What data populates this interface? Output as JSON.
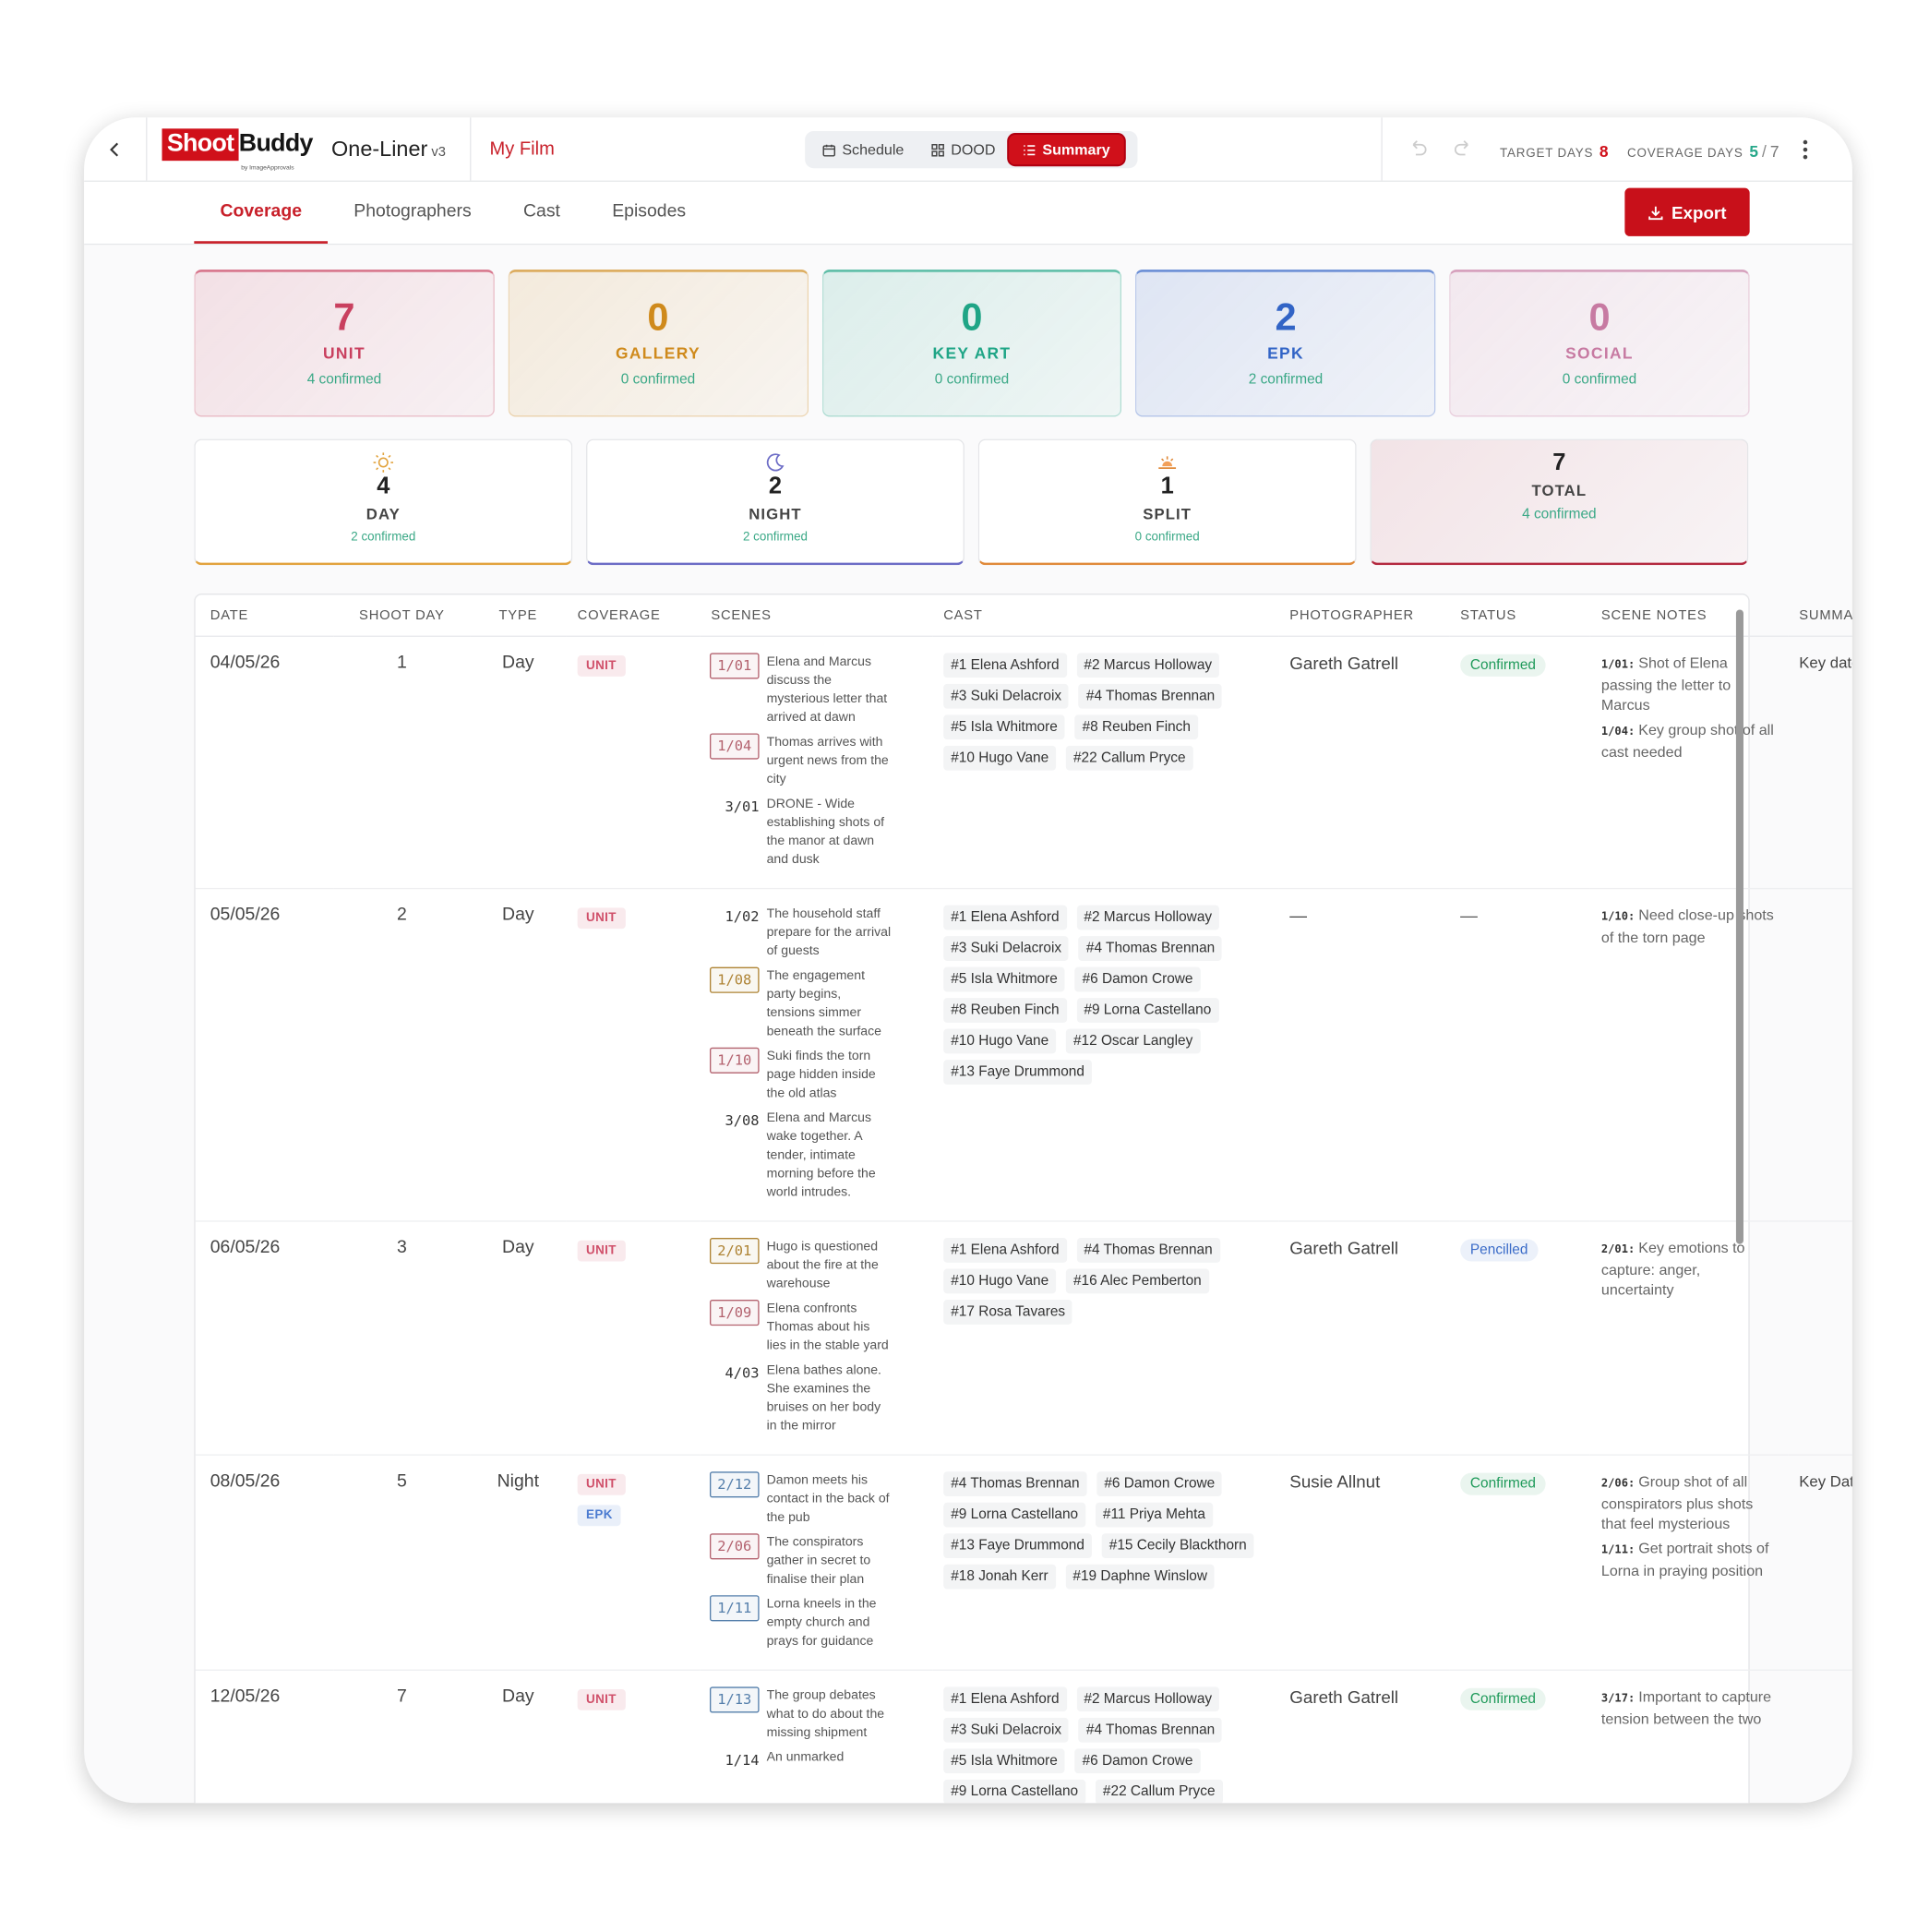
{
  "header": {
    "logo": {
      "shoot": "Shoot",
      "buddy": "Buddy",
      "by": "by ImageApprovals"
    },
    "app_name": "One-Liner",
    "version": "v3",
    "project": "My Film",
    "view_tabs": [
      {
        "label": "Schedule",
        "icon": "calendar",
        "active": false
      },
      {
        "label": "DOOD",
        "icon": "grid",
        "active": false
      },
      {
        "label": "Summary",
        "icon": "list",
        "active": true
      }
    ],
    "target_days": {
      "label": "TARGET DAYS",
      "value": 8
    },
    "coverage_days": {
      "label": "COVERAGE DAYS",
      "value": 5,
      "separator": "/",
      "total": 7
    }
  },
  "tabs": [
    {
      "label": "Coverage",
      "active": true
    },
    {
      "label": "Photographers",
      "active": false
    },
    {
      "label": "Cast",
      "active": false
    },
    {
      "label": "Episodes",
      "active": false
    }
  ],
  "export": "Export",
  "coverage_cards": [
    {
      "count": 7,
      "label": "UNIT",
      "confirmed": "4 confirmed",
      "color": "#c9405f"
    },
    {
      "count": 0,
      "label": "GALLERY",
      "confirmed": "0 confirmed",
      "color": "#cf8a1c"
    },
    {
      "count": 0,
      "label": "KEY ART",
      "confirmed": "0 confirmed",
      "color": "#1fa586"
    },
    {
      "count": 2,
      "label": "EPK",
      "confirmed": "2 confirmed",
      "color": "#3264c6"
    },
    {
      "count": 0,
      "label": "SOCIAL",
      "confirmed": "0 confirmed",
      "color": "#c77aa2"
    }
  ],
  "type_cards": [
    {
      "icon": "sun",
      "count": 4,
      "label": "DAY",
      "confirmed": "2 confirmed",
      "color": "#e2a33e"
    },
    {
      "icon": "moon",
      "count": 2,
      "label": "NIGHT",
      "confirmed": "2 confirmed",
      "color": "#6c6cc6"
    },
    {
      "icon": "sunset",
      "count": 1,
      "label": "SPLIT",
      "confirmed": "0 confirmed",
      "color": "#e08a3a"
    },
    {
      "icon": null,
      "count": 7,
      "label": "TOTAL",
      "confirmed": "4 confirmed",
      "color": "#b3293f",
      "highlight": true
    }
  ],
  "table": {
    "columns": [
      "DATE",
      "SHOOT DAY",
      "TYPE",
      "COVERAGE",
      "SCENES",
      "CAST",
      "PHOTOGRAPHER",
      "STATUS",
      "SCENE NOTES",
      "SUMMARY NOTES"
    ],
    "rows": [
      {
        "date": "04/05/26",
        "shoot_day": 1,
        "type": "Day",
        "coverage": [
          {
            "label": "UNIT",
            "color": "#d0506a"
          }
        ],
        "scenes": [
          {
            "id": "1/01",
            "text": "Elena and Marcus discuss the mysterious letter that arrived at dawn",
            "box": "#e07a8a"
          },
          {
            "id": "1/04",
            "text": "Thomas arrives with urgent news from the city",
            "box": "#e07a8a"
          },
          {
            "id": "3/01",
            "text": "DRONE - Wide establishing shots of the manor at dawn and dusk",
            "box": null
          }
        ],
        "cast": [
          "#1 Elena Ashford",
          "#2 Marcus Holloway",
          "#3 Suki Delacroix",
          "#4 Thomas Brennan",
          "#5 Isla Whitmore",
          "#8 Reuben Finch",
          "#10 Hugo Vane",
          "#22 Callum Pryce"
        ],
        "photographer": "Gareth Gatrell",
        "status": {
          "label": "Confirmed",
          "color": "#1f9a5a"
        },
        "scene_notes": [
          {
            "scene": "1/01:",
            "text": "Shot of Elena passing the letter to Marcus"
          },
          {
            "scene": "1/04:",
            "text": "Key group shot of all cast needed"
          }
        ],
        "summary": "Key date for episode"
      },
      {
        "date": "05/05/26",
        "shoot_day": 2,
        "type": "Day",
        "coverage": [
          {
            "label": "UNIT",
            "color": "#d0506a"
          }
        ],
        "scenes": [
          {
            "id": "1/02",
            "text": "The household staff prepare for the arrival of guests",
            "box": null
          },
          {
            "id": "1/08",
            "text": "The engagement party begins, tensions simmer beneath the surface",
            "box": "#d9a441"
          },
          {
            "id": "1/10",
            "text": "Suki finds the torn page hidden inside the old atlas",
            "box": "#e07a8a"
          },
          {
            "id": "3/08",
            "text": "Elena and Marcus wake together. A tender, intimate morning before the world intrudes.",
            "box": null
          }
        ],
        "cast": [
          "#1 Elena Ashford",
          "#2 Marcus Holloway",
          "#3 Suki Delacroix",
          "#4 Thomas Brennan",
          "#5 Isla Whitmore",
          "#6 Damon Crowe",
          "#8 Reuben Finch",
          "#9 Lorna Castellano",
          "#10 Hugo Vane",
          "#12 Oscar Langley",
          "#13 Faye Drummond"
        ],
        "photographer": "—",
        "status": {
          "label": "—",
          "color": null
        },
        "scene_notes": [
          {
            "scene": "1/10:",
            "text": "Need close-up shots of the torn page"
          }
        ],
        "summary": null
      },
      {
        "date": "06/05/26",
        "shoot_day": 3,
        "type": "Day",
        "coverage": [
          {
            "label": "UNIT",
            "color": "#d0506a"
          }
        ],
        "scenes": [
          {
            "id": "2/01",
            "text": "Hugo is questioned about the fire at the warehouse",
            "box": "#d9a441"
          },
          {
            "id": "1/09",
            "text": "Elena confronts Thomas about his lies in the stable yard",
            "box": "#e07a8a"
          },
          {
            "id": "4/03",
            "text": "Elena bathes alone. She examines the bruises on her body in the mirror",
            "box": null
          }
        ],
        "cast": [
          "#1 Elena Ashford",
          "#4 Thomas Brennan",
          "#10 Hugo Vane",
          "#16 Alec Pemberton",
          "#17 Rosa Tavares"
        ],
        "photographer": "Gareth Gatrell",
        "status": {
          "label": "Pencilled",
          "color": "#3a6bc8"
        },
        "scene_notes": [
          {
            "scene": "2/01:",
            "text": "Key emotions to capture: anger, uncertainty"
          }
        ],
        "summary": null
      },
      {
        "date": "08/05/26",
        "shoot_day": 5,
        "type": "Night",
        "coverage": [
          {
            "label": "UNIT",
            "color": "#d0506a"
          },
          {
            "label": "EPK",
            "color": "#4a7ad0"
          }
        ],
        "scenes": [
          {
            "id": "2/12",
            "text": "Damon meets his contact in the back of the pub",
            "box": "#6a9fd6"
          },
          {
            "id": "2/06",
            "text": "The conspirators gather in secret to finalise their plan",
            "box": "#e07a8a"
          },
          {
            "id": "1/11",
            "text": "Lorna kneels in the empty church and prays for guidance",
            "box": "#6a9fd6"
          }
        ],
        "cast": [
          "#4 Thomas Brennan",
          "#6 Damon Crowe",
          "#9 Lorna Castellano",
          "#11 Priya Mehta",
          "#13 Faye Drummond",
          "#15 Cecily Blackthorn",
          "#18 Jonah Kerr",
          "#19 Daphne Winslow"
        ],
        "photographer": "Susie Allnut",
        "status": {
          "label": "Confirmed",
          "color": "#1f9a5a"
        },
        "scene_notes": [
          {
            "scene": "2/06:",
            "text": "Group shot of all conspirators plus shots that feel mysterious"
          },
          {
            "scene": "1/11:",
            "text": "Get portrait shots of Lorna in praying position"
          }
        ],
        "summary": "Key Date for episode"
      },
      {
        "date": "12/05/26",
        "shoot_day": 7,
        "type": "Day",
        "coverage": [
          {
            "label": "UNIT",
            "color": "#d0506a"
          }
        ],
        "scenes": [
          {
            "id": "1/13",
            "text": "The group debates what to do about the missing shipment",
            "box": "#6a9fd6"
          },
          {
            "id": "1/14",
            "text": "An unmarked",
            "box": null
          }
        ],
        "cast": [
          "#1 Elena Ashford",
          "#2 Marcus Holloway",
          "#3 Suki Delacroix",
          "#4 Thomas Brennan",
          "#5 Isla Whitmore",
          "#6 Damon Crowe",
          "#9 Lorna Castellano",
          "#22 Callum Pryce"
        ],
        "photographer": "Gareth Gatrell",
        "status": {
          "label": "Confirmed",
          "color": "#1f9a5a"
        },
        "scene_notes": [
          {
            "scene": "3/17:",
            "text": "Important to capture tension between the two"
          }
        ],
        "summary": null
      }
    ]
  }
}
